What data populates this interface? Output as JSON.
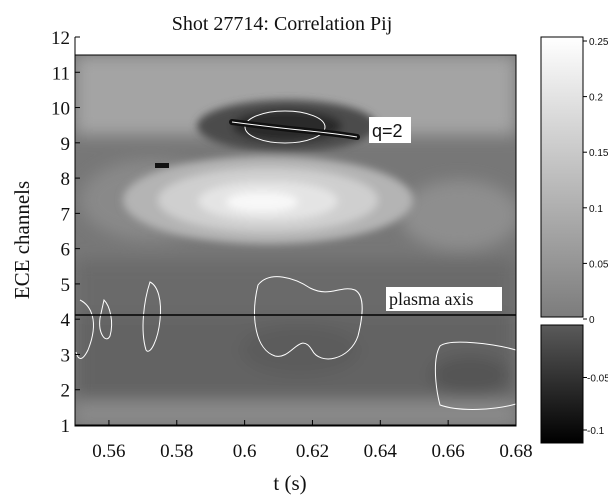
{
  "chart_data": {
    "type": "heatmap",
    "title": "Shot 27714: Correlation Pij",
    "xlabel": "t (s)",
    "ylabel": "ECE channels",
    "xlim": [
      0.55,
      0.68
    ],
    "ylim": [
      1,
      12
    ],
    "x_ticks": [
      "0.56",
      "0.58",
      "0.6",
      "0.62",
      "0.64",
      "0.66",
      "0.68"
    ],
    "y_ticks": [
      "1",
      "2",
      "3",
      "4",
      "5",
      "6",
      "7",
      "8",
      "9",
      "10",
      "11",
      "12"
    ],
    "colorbar": {
      "range": [
        -0.12,
        0.25
      ],
      "upper_ticks": [
        "0.25",
        "0.2",
        "0.15",
        "0.1",
        "0.05",
        "0"
      ],
      "lower_ticks": [
        "-0.05",
        "-0.1"
      ],
      "scale": "grayscale"
    },
    "annotations": [
      {
        "text": "q=2",
        "x": 0.637,
        "y": 9.45
      },
      {
        "text": "plasma axis",
        "x": 0.64,
        "y": 4.95
      }
    ],
    "reference_lines": [
      {
        "label": "plasma axis",
        "y": 4.5
      },
      {
        "label": "q=2",
        "x": [
          0.597,
          0.634
        ],
        "y": [
          9.65,
          9.3
        ]
      }
    ],
    "features": [
      {
        "kind": "max",
        "t": 0.608,
        "channel": 7.5,
        "value": 0.25
      },
      {
        "kind": "min",
        "t": 0.612,
        "channel": 9.5,
        "value": -0.1
      }
    ]
  }
}
